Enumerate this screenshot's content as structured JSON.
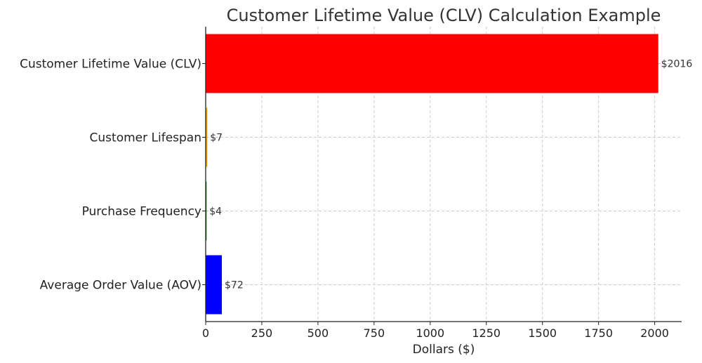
{
  "chart_data": {
    "type": "bar",
    "orientation": "horizontal",
    "title": "Customer Lifetime Value (CLV) Calculation Example",
    "xlabel": "Dollars ($)",
    "ylabel": "",
    "categories": [
      "Average Order Value (AOV)",
      "Purchase Frequency",
      "Customer Lifespan",
      "Customer Lifetime Value (CLV)"
    ],
    "values": [
      72,
      4,
      7,
      2016
    ],
    "data_labels": [
      "$72",
      "$4",
      "$7",
      "$2016"
    ],
    "colors": [
      "#0000ff",
      "#008000",
      "#ffa500",
      "#ff0000"
    ],
    "xlim": [
      0,
      2120
    ],
    "xticks": [
      0,
      250,
      500,
      750,
      1000,
      1250,
      1500,
      1750,
      2000
    ],
    "grid": true
  }
}
